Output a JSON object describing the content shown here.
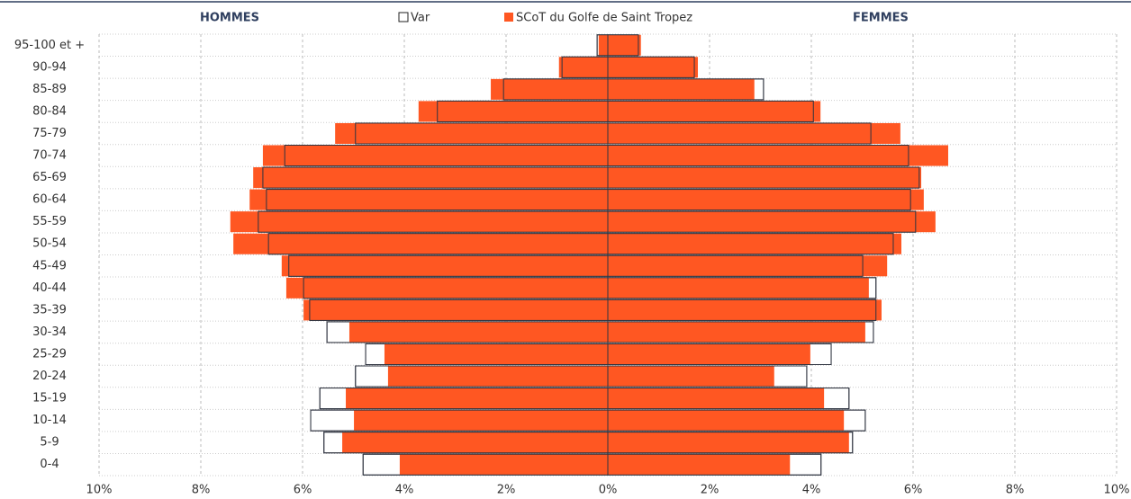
{
  "chart_data": {
    "type": "pyramid",
    "left_label": "HOMMES",
    "right_label": "FEMMES",
    "categories": [
      "0-4",
      "5-9",
      "10-14",
      "15-19",
      "20-24",
      "25-29",
      "30-34",
      "35-39",
      "40-44",
      "45-49",
      "50-54",
      "55-59",
      "60-64",
      "65-69",
      "70-74",
      "75-79",
      "80-84",
      "85-89",
      "90-94",
      "95-100 et +"
    ],
    "series": [
      {
        "name": "Var",
        "color": "#ffffff",
        "hommes": [
          -4.81,
          -5.58,
          -5.84,
          -5.66,
          -4.96,
          -4.76,
          -5.52,
          -5.86,
          -5.98,
          -6.27,
          -6.67,
          -6.87,
          -6.71,
          -6.78,
          -6.35,
          -4.96,
          -3.35,
          -2.05,
          -0.9,
          -0.21
        ],
        "femmes": [
          4.19,
          4.81,
          5.06,
          4.74,
          3.91,
          4.39,
          5.22,
          5.27,
          5.27,
          5.01,
          5.61,
          6.05,
          5.95,
          6.12,
          5.91,
          5.17,
          4.04,
          3.06,
          1.7,
          0.6
        ]
      },
      {
        "name": "SCoT du Golfe de Saint Tropez",
        "color": "#ff5722",
        "hommes": [
          -4.09,
          -5.22,
          -4.99,
          -5.15,
          -4.32,
          -4.39,
          -5.08,
          -5.98,
          -6.32,
          -6.41,
          -7.36,
          -7.42,
          -7.04,
          -6.97,
          -6.78,
          -5.36,
          -3.72,
          -2.3,
          -0.96,
          -0.18
        ],
        "femmes": [
          3.58,
          4.74,
          4.64,
          4.25,
          3.27,
          3.98,
          5.06,
          5.38,
          5.13,
          5.49,
          5.77,
          6.44,
          6.21,
          6.16,
          6.69,
          5.75,
          4.18,
          2.88,
          1.77,
          0.65
        ]
      }
    ],
    "xlim": [
      -10,
      10
    ],
    "xticks": [
      {
        "value": -10,
        "label": "10%"
      },
      {
        "value": -8,
        "label": "8%"
      },
      {
        "value": -6,
        "label": "6%"
      },
      {
        "value": -4,
        "label": "4%"
      },
      {
        "value": -2,
        "label": "2%"
      },
      {
        "value": 0,
        "label": "0%"
      },
      {
        "value": 2,
        "label": "2%"
      },
      {
        "value": 4,
        "label": "4%"
      },
      {
        "value": 6,
        "label": "6%"
      },
      {
        "value": 8,
        "label": "8%"
      },
      {
        "value": 10,
        "label": "10%"
      }
    ],
    "grid": true
  }
}
